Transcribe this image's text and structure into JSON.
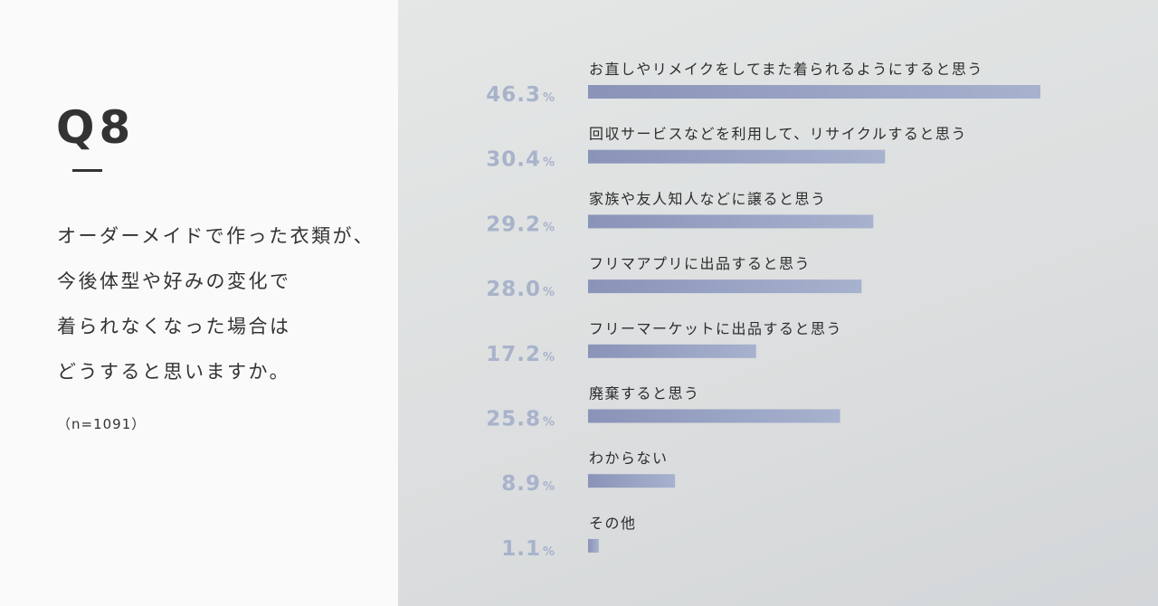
{
  "left": {
    "q_number": "Q8",
    "question_lines": [
      "オーダーメイドで作った衣類が、",
      "今後体型や好みの変化で",
      "着られなくなった場合は",
      "どうすると思いますか。"
    ],
    "sample_size": "（n=1091）"
  },
  "colors": {
    "bar_start": "#8a93b8",
    "bar_end": "#a7b2ce",
    "value_text": "#a8b3cb",
    "label_text": "#2c2c2c"
  },
  "chart_data": {
    "type": "bar",
    "orientation": "horizontal",
    "unit": "%",
    "categories": [
      "お直しやリメイクをしてまた着られるようにすると思う",
      "回収サービスなどを利用して、リサイクルすると思う",
      "家族や友人知人などに譲ると思う",
      "フリマアプリに出品すると思う",
      "フリーマーケットに出品すると思う",
      "廃棄すると思う",
      "わからない",
      "その他"
    ],
    "values": [
      46.3,
      30.4,
      29.2,
      28.0,
      17.2,
      25.8,
      8.9,
      1.1
    ],
    "value_labels": [
      "46.3",
      "30.4",
      "29.2",
      "28.0",
      "17.2",
      "25.8",
      "8.9",
      "1.1"
    ],
    "xlim": [
      0,
      46.3
    ],
    "grid": false
  }
}
